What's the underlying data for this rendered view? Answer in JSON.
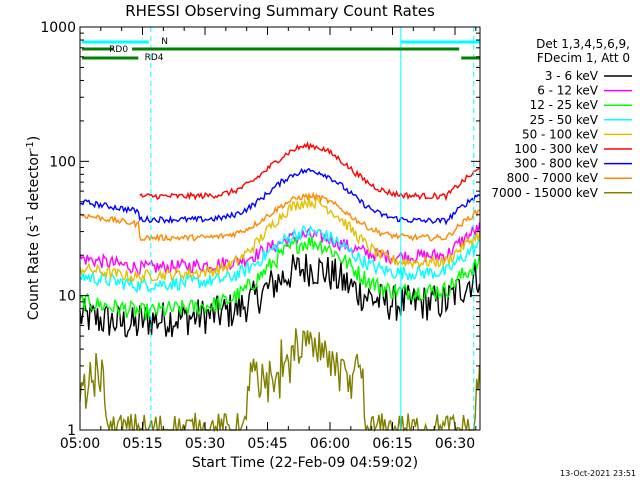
{
  "chart_data": {
    "type": "line",
    "title": "RHESSI Observing Summary Count Rates",
    "ylabel_main": "Count Rate (s",
    "ylabel_sup": "-1",
    "ylabel_mid": " detector",
    "ylabel_end": ")",
    "xlabel": "Start Time (22-Feb-09 04:59:02)",
    "y_scale": "log",
    "ylim": [
      1,
      1000
    ],
    "xlim_minutes": [
      0,
      96
    ],
    "x_ticks": [
      {
        "t": 0,
        "label": "05:00"
      },
      {
        "t": 15,
        "label": "05:15"
      },
      {
        "t": 30,
        "label": "05:30"
      },
      {
        "t": 45,
        "label": "05:45"
      },
      {
        "t": 60,
        "label": "06:00"
      },
      {
        "t": 75,
        "label": "06:15"
      },
      {
        "t": 90,
        "label": "06:30"
      }
    ],
    "y_ticks": [
      {
        "v": 1,
        "label": "1"
      },
      {
        "v": 10,
        "label": "10"
      },
      {
        "v": 100,
        "label": "100"
      },
      {
        "v": 1000,
        "label": "1000"
      }
    ],
    "legend_header": [
      "Det 1,3,4,5,6,9,",
      "FDecim 1, Att 0"
    ],
    "series": [
      {
        "name": "3 - 6 keV",
        "color": "#000000",
        "base": 7,
        "flat": [
          6.5,
          9
        ],
        "peak": 16,
        "noise": 0.32
      },
      {
        "name": "6 - 12 keV",
        "color": "#ff00ff",
        "base": 19,
        "flat": [
          16,
          20
        ],
        "peak": 28,
        "noise": 0.12
      },
      {
        "name": "12 - 25 keV",
        "color": "#00ff00",
        "base": 9,
        "flat": [
          7.5,
          11
        ],
        "peak": 25,
        "noise": 0.15
      },
      {
        "name": "25 - 50 keV",
        "color": "#00ffff",
        "base": 14,
        "flat": [
          12,
          15
        ],
        "peak": 30,
        "noise": 0.12
      },
      {
        "name": "50 - 100 keV",
        "color": "#e0c000",
        "base": 16,
        "flat": [
          14,
          18
        ],
        "peak": 50,
        "noise": 0.1
      },
      {
        "name": "100 - 300 keV",
        "color": "#ff0000",
        "base": 0,
        "flat": [
          55,
          55
        ],
        "peak": 130,
        "noise": 0.05
      },
      {
        "name": "300 - 800 keV",
        "color": "#0000ff",
        "base": 50,
        "flat": [
          37,
          36
        ],
        "peak": 85,
        "noise": 0.05
      },
      {
        "name": "800 - 7000 keV",
        "color": "#ff8800",
        "base": 40,
        "flat": [
          27,
          27
        ],
        "peak": 55,
        "noise": 0.05
      },
      {
        "name": "7000 - 15000 keV",
        "color": "#808000",
        "base": 2,
        "flat": [
          1,
          1
        ],
        "peak": 3,
        "noise": 0.3
      }
    ],
    "bars": {
      "n_label": "N",
      "rd0_label": "RD0",
      "rd4_label": "RD4",
      "n_color": "#00ffff",
      "rd_color": "#008000"
    },
    "vertical_markers": [
      {
        "t": 0,
        "style": "solid"
      },
      {
        "t": 17,
        "style": "dashed"
      },
      {
        "t": 77,
        "style": "solid"
      },
      {
        "t": 94.5,
        "style": "dashed"
      }
    ],
    "timestamp": "13-Oct-2021 23:51"
  }
}
